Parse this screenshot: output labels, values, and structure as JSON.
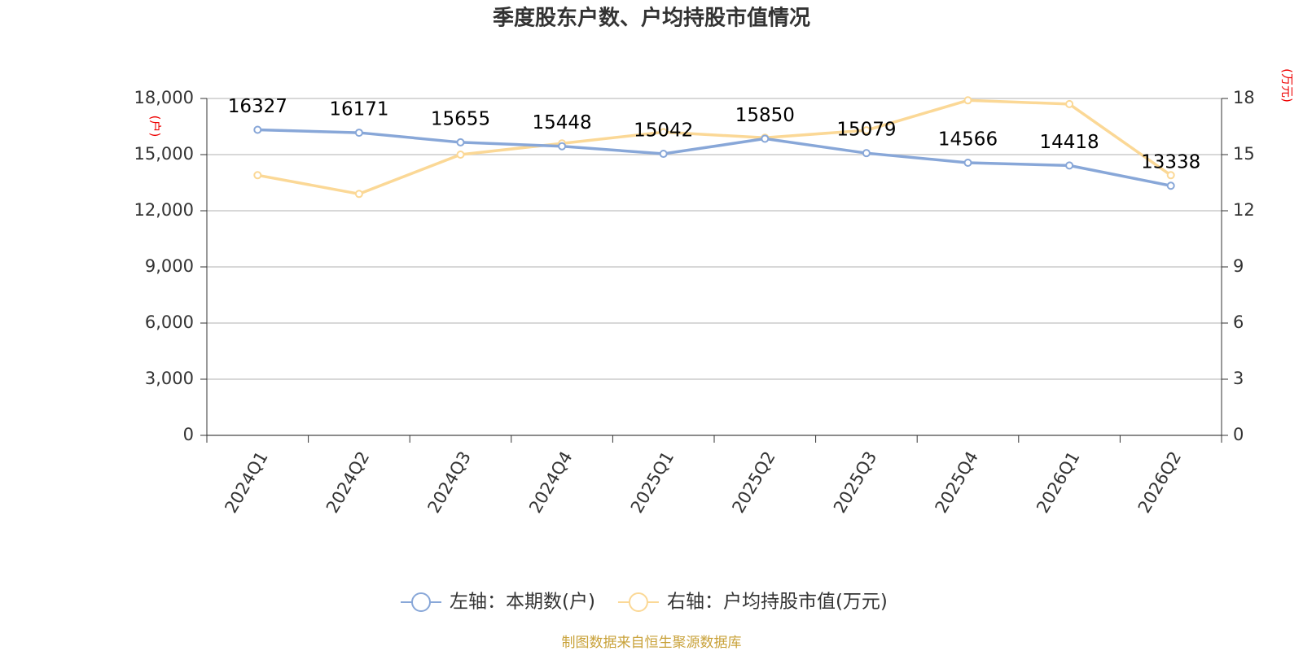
{
  "chart_data": {
    "type": "line",
    "title": "季度股东户数、户均持股市值情况",
    "y_label": "(户)",
    "y2_label": "(万元)",
    "source": "制图数据来自恒生聚源数据库",
    "categories": [
      "2024Q1",
      "2024Q2",
      "2024Q3",
      "2024Q4",
      "2025Q1",
      "2025Q2",
      "2025Q3",
      "2025Q4",
      "2026Q1",
      "2026Q2"
    ],
    "series": [
      {
        "name": "左轴：本期数(户)",
        "color": "#88a7d8",
        "axis": "y",
        "values": [
          16327,
          16171,
          15655,
          15448,
          15042,
          15850,
          15079,
          14566,
          14418,
          13338
        ]
      },
      {
        "name": "右轴：户均持股市值(万元)",
        "color": "#fbd896",
        "axis": "y2",
        "values": [
          13.9,
          12.9,
          15.0,
          15.6,
          16.2,
          15.9,
          16.3,
          17.9,
          17.7,
          13.9
        ]
      }
    ],
    "ylim": [
      0,
      18000
    ],
    "yticks": [
      0,
      {
        "value": 3000,
        "label": "3,000"
      },
      {
        "value": 6000,
        "label": "6,000"
      },
      {
        "value": 9000,
        "label": "9,000"
      },
      {
        "value": 12000,
        "label": "12,000"
      },
      {
        "value": 15000,
        "label": "15,000"
      },
      {
        "value": 18000,
        "label": "18,000"
      }
    ],
    "y2lim": [
      0,
      18
    ],
    "y2ticks": [
      0,
      3,
      6,
      9,
      12,
      15,
      18
    ],
    "grid": true,
    "legend": "bottom"
  }
}
